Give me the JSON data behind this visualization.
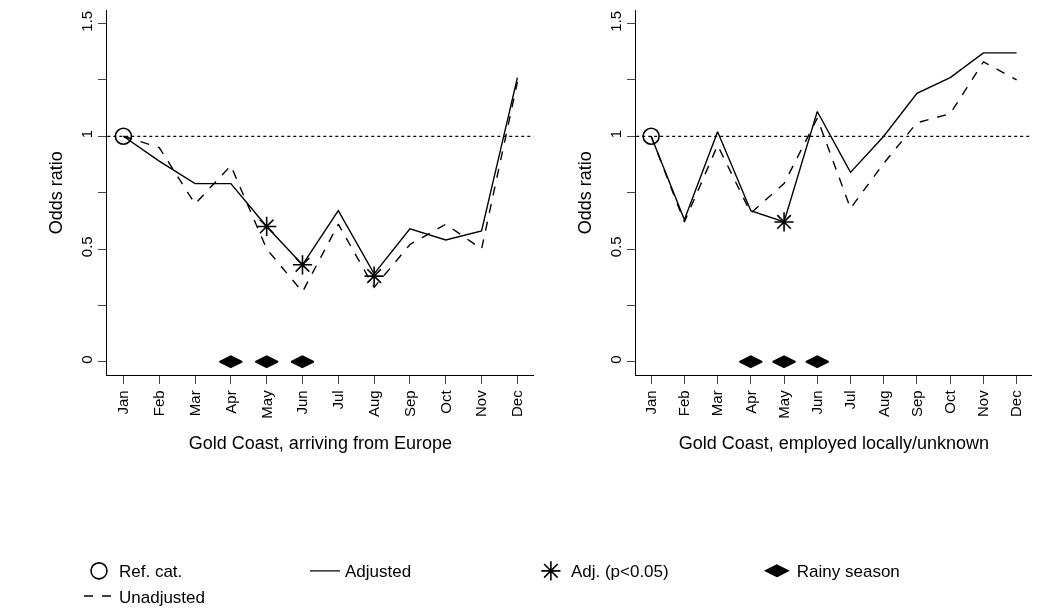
{
  "chart_data": [
    {
      "type": "line",
      "xlabel": "Gold Coast, arriving from Europe",
      "ylabel": "Odds ratio",
      "categories": [
        "Jan",
        "Feb",
        "Mar",
        "Apr",
        "May",
        "Jun",
        "Jul",
        "Aug",
        "Sep",
        "Oct",
        "Nov",
        "Dec"
      ],
      "ylim": [
        -0.06,
        1.56
      ],
      "yticks": [
        0,
        {
          "value": 0.25,
          "label": null
        },
        0.5,
        {
          "value": 0.75,
          "label": null
        },
        1,
        {
          "value": 1.25,
          "label": null
        },
        1.5
      ],
      "legend": "bottom",
      "ref_lines": [
        {
          "axis": "y",
          "value": 1,
          "line_style": "dotted",
          "color": "#000000"
        }
      ],
      "series": [
        {
          "name": "Ref. cat.",
          "type": "scatter",
          "marker": "circle",
          "color": "#000000",
          "values": [
            1,
            null,
            null,
            null,
            null,
            null,
            null,
            null,
            null,
            null,
            null,
            null
          ]
        },
        {
          "name": "Adjusted",
          "line_style": "solid",
          "marker": "none",
          "color": "#000000",
          "values": [
            1,
            0.89,
            0.79,
            0.79,
            0.6,
            0.43,
            0.67,
            0.39,
            0.59,
            0.54,
            0.58,
            1.26
          ]
        },
        {
          "name": "Adj. (p<0.05)",
          "type": "scatter",
          "marker": "cross",
          "color": "#000000",
          "values": [
            null,
            null,
            null,
            null,
            0.6,
            0.43,
            null,
            0.38,
            null,
            null,
            null,
            null
          ]
        },
        {
          "name": "Rainy season",
          "type": "scatter",
          "marker": "diamond",
          "color": "#000000",
          "values": [
            null,
            null,
            null,
            0,
            0,
            0,
            null,
            null,
            null,
            null,
            null,
            null
          ]
        },
        {
          "name": "Unadjusted",
          "line_style": "dashed",
          "marker": "none",
          "color": "#000000",
          "values": [
            1,
            0.95,
            0.7,
            0.87,
            0.5,
            0.31,
            0.61,
            0.33,
            0.52,
            0.61,
            0.5,
            1.24
          ]
        }
      ]
    },
    {
      "type": "line",
      "xlabel": "Gold Coast, employed locally/unknown",
      "ylabel": "Odds ratio",
      "categories": [
        "Jan",
        "Feb",
        "Mar",
        "Apr",
        "May",
        "Jun",
        "Jul",
        "Aug",
        "Sep",
        "Oct",
        "Nov",
        "Dec"
      ],
      "ylim": [
        -0.06,
        1.56
      ],
      "yticks": [
        0,
        {
          "value": 0.25,
          "label": null
        },
        0.5,
        {
          "value": 0.75,
          "label": null
        },
        1,
        {
          "value": 1.25,
          "label": null
        },
        1.5
      ],
      "ref_lines": [
        {
          "axis": "y",
          "value": 1,
          "line_style": "dotted",
          "color": "#000000"
        }
      ],
      "series": [
        {
          "type": "scatter",
          "marker": "circle",
          "color": "#000000",
          "values": [
            1,
            null,
            null,
            null,
            null,
            null,
            null,
            null,
            null,
            null,
            null,
            null
          ]
        },
        {
          "line_style": "solid",
          "marker": "none",
          "color": "#000000",
          "values": [
            1,
            0.63,
            1.02,
            0.67,
            0.62,
            1.11,
            0.84,
            1.0,
            1.19,
            1.26,
            1.37,
            1.37
          ]
        },
        {
          "type": "scatter",
          "marker": "cross",
          "color": "#000000",
          "values": [
            null,
            null,
            null,
            null,
            0.62,
            null,
            null,
            null,
            null,
            null,
            null,
            null
          ]
        },
        {
          "type": "scatter",
          "marker": "diamond",
          "color": "#000000",
          "values": [
            null,
            null,
            null,
            0,
            0,
            0,
            null,
            null,
            null,
            null,
            null,
            null
          ]
        },
        {
          "line_style": "dashed",
          "marker": "none",
          "color": "#000000",
          "values": [
            1,
            0.62,
            0.96,
            0.66,
            0.79,
            1.08,
            0.68,
            0.88,
            1.06,
            1.1,
            1.33,
            1.25
          ]
        }
      ]
    }
  ]
}
